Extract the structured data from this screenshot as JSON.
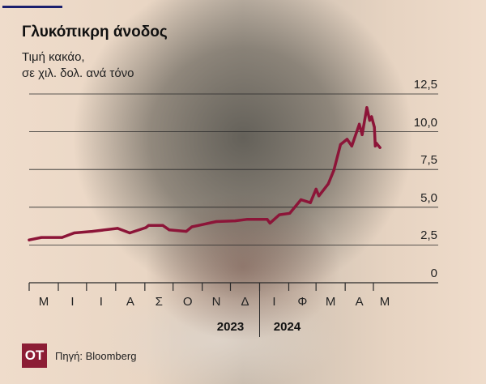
{
  "header": {
    "title": "Γλυκόπικρη άνοδος",
    "subtitle_line1": "Τιμή κακάο,",
    "subtitle_line2": "σε χιλ. δολ. ανά τόνο"
  },
  "footer": {
    "logo": "OT",
    "source": "Πηγή: Bloomberg"
  },
  "colors": {
    "line": "#8c1538",
    "background": "#efdccb",
    "accent_bar": "#1b1f6e",
    "logo": "#8c1d35"
  },
  "chart_data": {
    "type": "line",
    "title": "Γλυκόπικρη άνοδος",
    "ylabel": "Τιμή κακάο, σε χιλ. δολ. ανά τόνο",
    "ylim": [
      0,
      12.5
    ],
    "yticks": [
      "0",
      "2,5",
      "5,0",
      "7,5",
      "10,0",
      "12,5"
    ],
    "ytick_values": [
      0,
      2.5,
      5,
      7.5,
      10,
      12.5
    ],
    "xlim": [
      "2023-05-01",
      "2024-05-31"
    ],
    "month_labels": [
      "Μ",
      "Ι",
      "Ι",
      "Α",
      "Σ",
      "Ο",
      "Ν",
      "Δ",
      "Ι",
      "Φ",
      "Μ",
      "Α",
      "Μ"
    ],
    "year_labels": [
      "2023",
      "2024"
    ],
    "grid": true,
    "series": [
      {
        "x": [
          "2023-05-01",
          "2023-05-14",
          "2023-06-05",
          "2023-06-18",
          "2023-07-07",
          "2023-08-03",
          "2023-08-16",
          "2023-09-02",
          "2023-09-05",
          "2023-09-20",
          "2023-09-27",
          "2023-10-15",
          "2023-10-21",
          "2023-11-16",
          "2023-12-06",
          "2023-12-19",
          "2024-01-09",
          "2024-01-12",
          "2024-01-22",
          "2024-02-02",
          "2024-02-14",
          "2024-02-24",
          "2024-03-01",
          "2024-03-04",
          "2024-03-14",
          "2024-03-20",
          "2024-03-27",
          "2024-04-03",
          "2024-04-08",
          "2024-04-16",
          "2024-04-19",
          "2024-04-24",
          "2024-04-27",
          "2024-04-29",
          "2024-05-02",
          "2024-05-03",
          "2024-05-04",
          "2024-05-08"
        ],
        "y": [
          2.83,
          3.0,
          3.0,
          3.3,
          3.4,
          3.6,
          3.3,
          3.65,
          3.8,
          3.8,
          3.5,
          3.4,
          3.7,
          4.05,
          4.1,
          4.2,
          4.2,
          3.95,
          4.5,
          4.6,
          5.5,
          5.3,
          6.2,
          5.75,
          6.55,
          7.45,
          9.15,
          9.5,
          9.05,
          10.5,
          9.8,
          11.6,
          10.75,
          11.0,
          10.3,
          9.05,
          9.25,
          8.95
        ]
      }
    ]
  }
}
